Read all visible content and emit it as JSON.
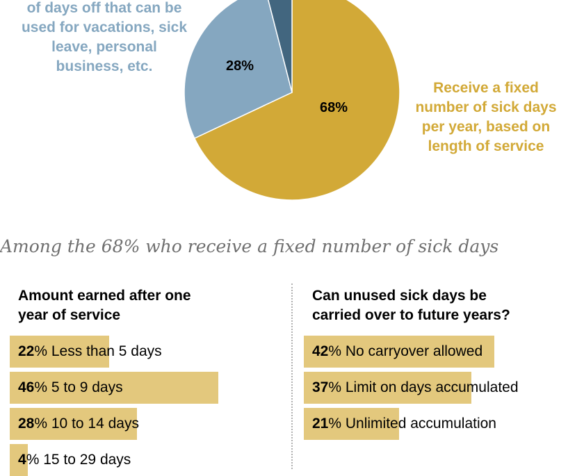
{
  "chart_data": [
    {
      "type": "pie",
      "slices": [
        {
          "name": "Receive a fixed number of sick days per year, based on length of service",
          "value": 68,
          "label": "68%",
          "color": "#d2a937"
        },
        {
          "name": "of days off that can be used for vacations, sick leave, personal business, etc.",
          "value": 28,
          "label": "28%",
          "color": "#85a7c0"
        },
        {
          "name": "",
          "value": 4,
          "label": "",
          "color": "#42667f"
        }
      ]
    },
    {
      "type": "bar",
      "title": "Amount earned after one year of service",
      "categories": [
        "Less than 5 days",
        "5 to 9 days",
        "10 to 14 days",
        "15 to 29 days"
      ],
      "values": [
        22,
        46,
        28,
        4
      ],
      "value_suffix": "%"
    },
    {
      "type": "bar",
      "title": "Can unused sick days be carried over to future years?",
      "categories": [
        "No carryover allowed",
        "Limit on days accumulated",
        "Unlimited accumulation"
      ],
      "values": [
        42,
        37,
        21
      ],
      "value_suffix": "%"
    }
  ],
  "pie_labels": {
    "left_lines": [
      "of days off that can be",
      "used for vacations, sick",
      "leave, personal",
      "business, etc."
    ],
    "right_lines": [
      "Receive a fixed",
      "number of sick days",
      "per year, based on",
      "length of service"
    ],
    "pct_28": "28%",
    "pct_68": "68%"
  },
  "subhead": "Among the 68% who receive a fixed number of sick days",
  "left_panel": {
    "title_lines": [
      "Amount earned after one",
      "year of service"
    ]
  },
  "right_panel": {
    "title_lines": [
      "Can unused sick days be",
      "carried over to future years?"
    ]
  },
  "colors": {
    "gold": "#d2a937",
    "blue_light": "#85a7c0",
    "blue_dark": "#42667f",
    "bar": "#e3c87d",
    "blue_text": "#85a7c0",
    "gold_text": "#d2a937"
  }
}
